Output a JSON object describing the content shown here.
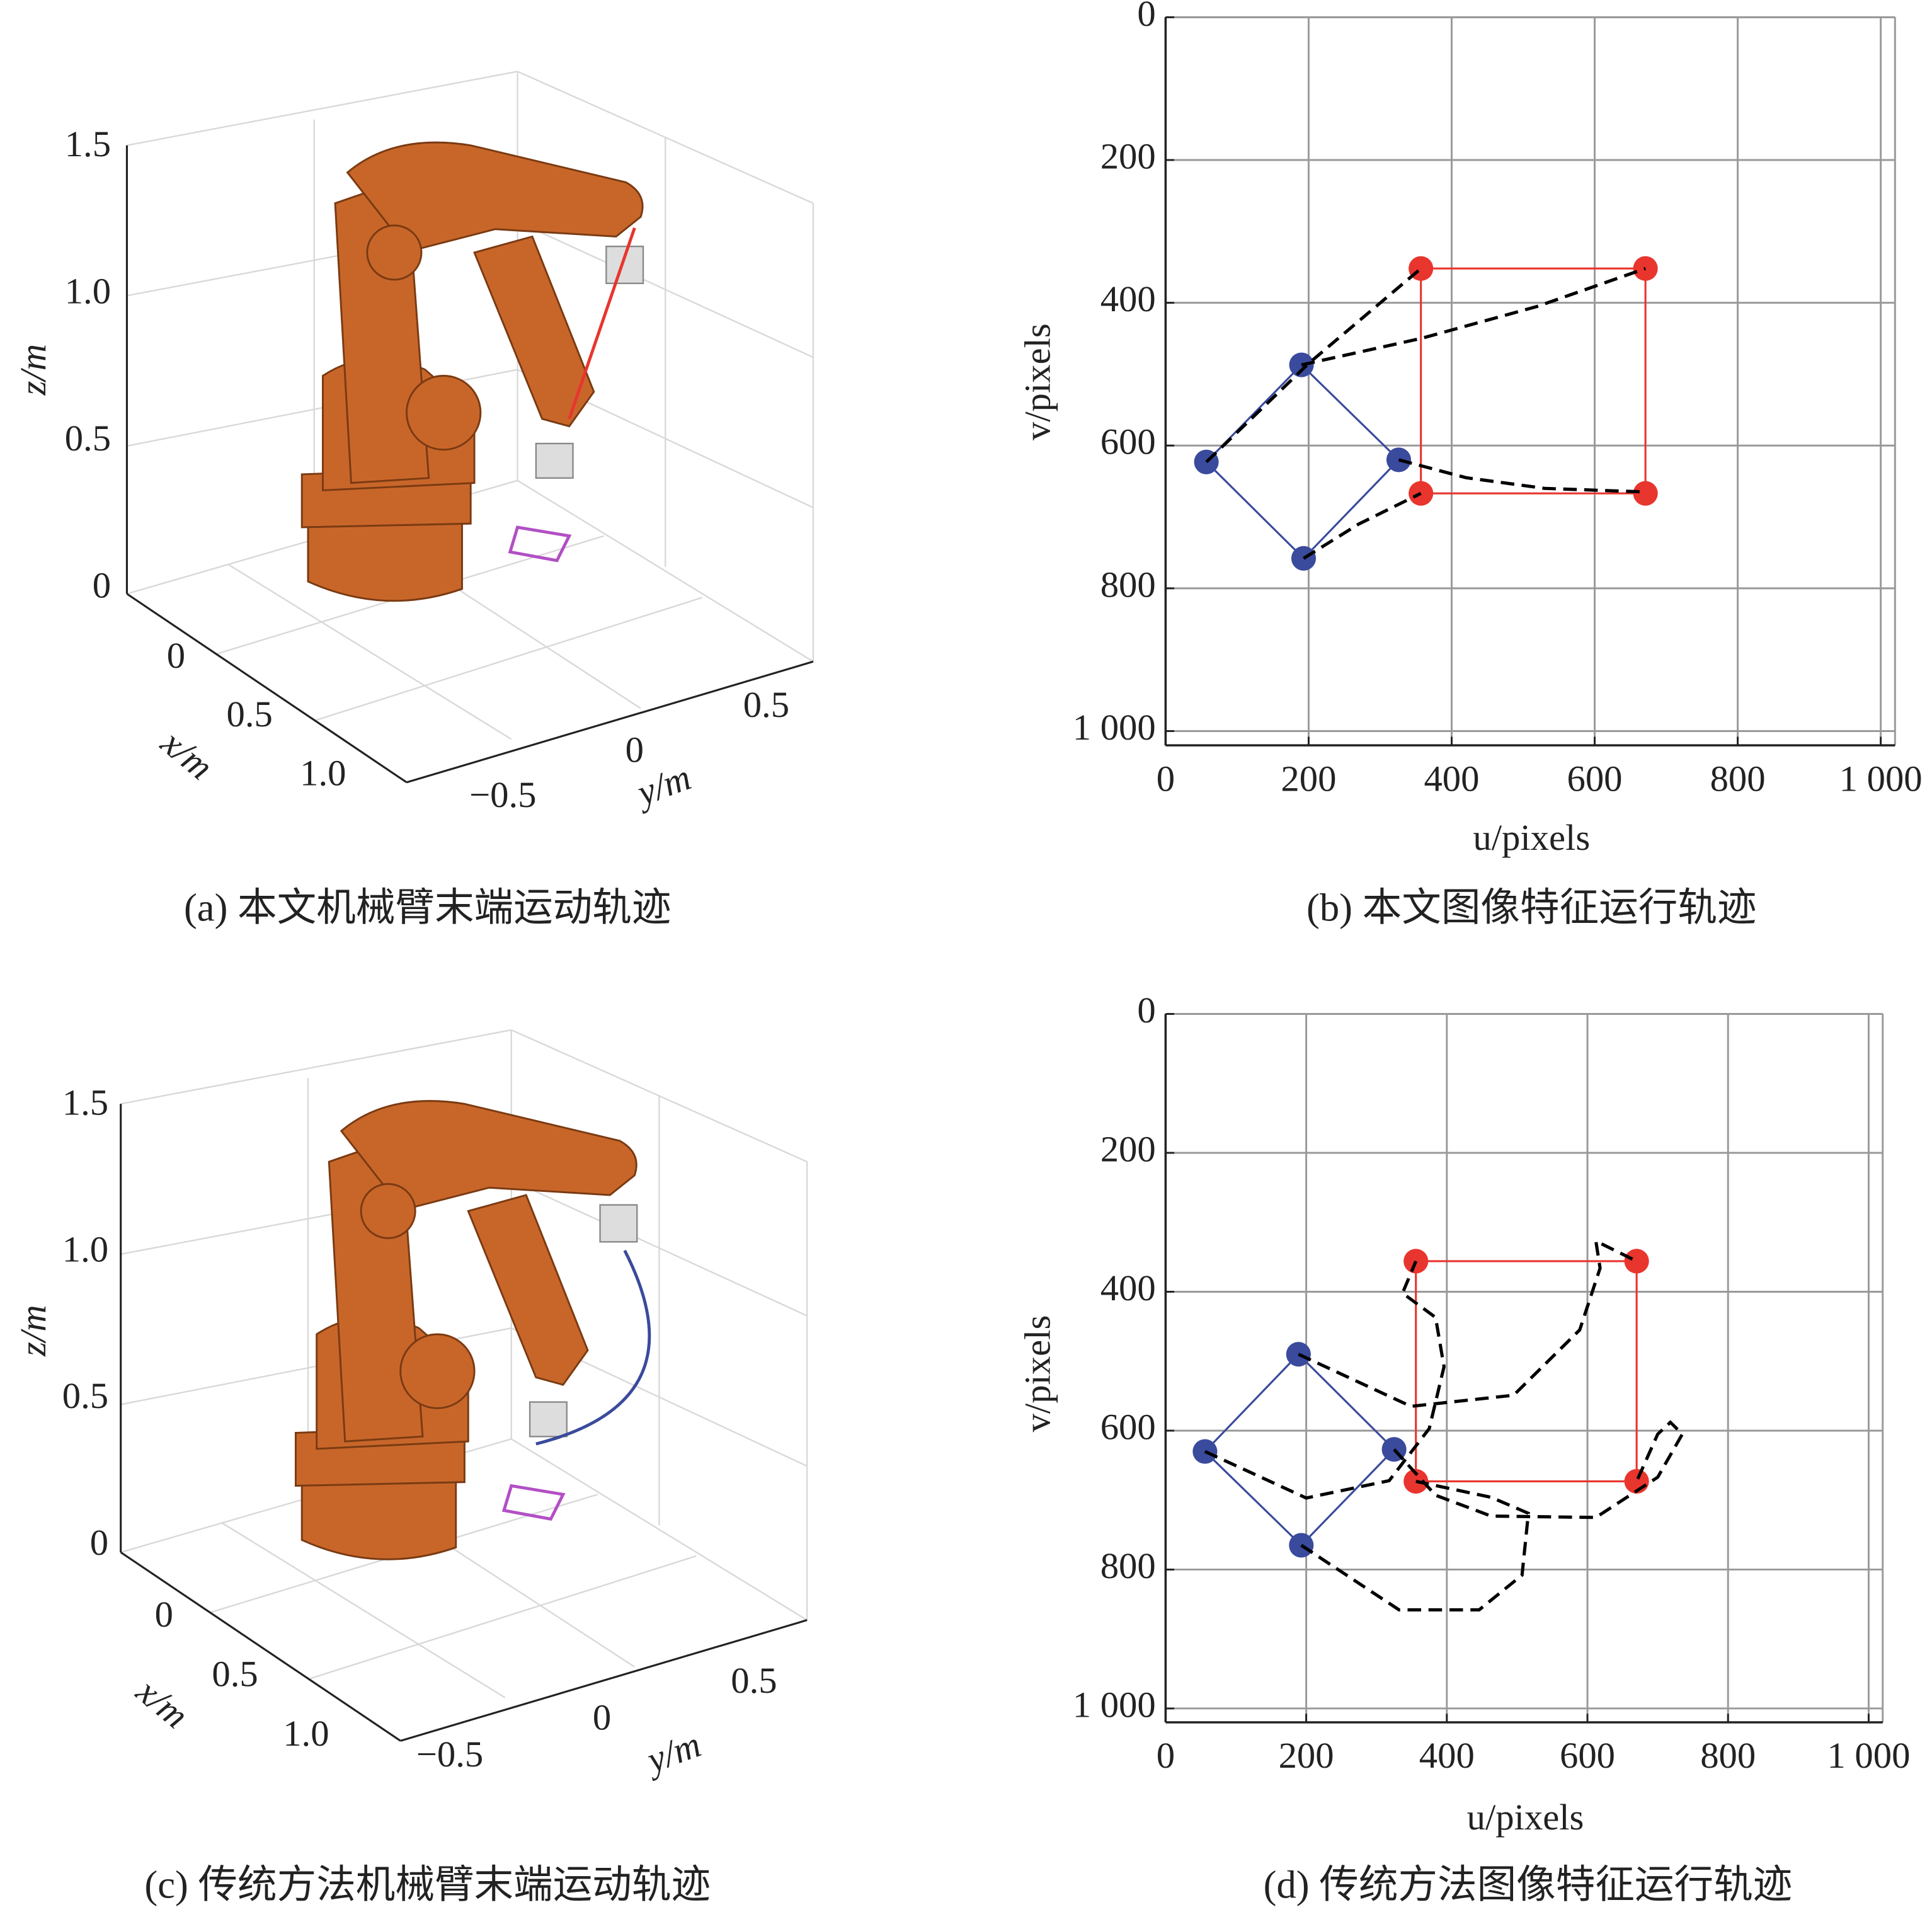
{
  "chart_data": [
    {
      "type": "robot3d",
      "caption": "(a) 本文机械臂末端运动轨迹",
      "zlabel": "z/m",
      "xlabel": "x/m",
      "ylabel": "y/m",
      "zlim": [
        0,
        1.5
      ],
      "zticks": [
        0,
        0.5,
        {
          "value": 1,
          "label": "1.0"
        },
        1.5
      ],
      "xlim": [
        -0.2,
        1.3
      ],
      "xticks": [
        0,
        0.5,
        {
          "value": 1,
          "label": "1.0"
        }
      ],
      "ylim": [
        -0.8,
        0.8
      ],
      "yticks": [
        {
          "value": -0.5,
          "label": "−0.5"
        },
        0,
        0.5
      ]
    },
    {
      "type": "scatter",
      "caption": "(b) 本文图像特征运行轨迹",
      "xlabel": "u/pixels",
      "ylabel": "v/pixels",
      "xlim": [
        0,
        1020
      ],
      "ylim": [
        1020,
        0
      ],
      "grid": true,
      "xticks": [
        0,
        200,
        400,
        600,
        800,
        {
          "value": 1000,
          "label": "1 000"
        }
      ],
      "yticks": [
        0,
        200,
        400,
        600,
        800,
        {
          "value": 1000,
          "label": "1 000"
        }
      ],
      "series": [
        {
          "color": "#3a4a9c",
          "marker": true,
          "closed": true,
          "x": [
            57,
            190,
            326,
            193
          ],
          "y": [
            623,
            487,
            620,
            758
          ]
        },
        {
          "color": "#e8352e",
          "marker": true,
          "closed": true,
          "x": [
            357,
            671,
            671,
            357
          ],
          "y": [
            352,
            352,
            667,
            667
          ]
        },
        {
          "color": "#000000",
          "dashed": true,
          "x": [
            57,
            200,
            357
          ],
          "y": [
            623,
            485,
            352
          ]
        },
        {
          "color": "#000000",
          "dashed": true,
          "x": [
            190,
            357,
            520,
            671
          ],
          "y": [
            487,
            450,
            405,
            352
          ]
        },
        {
          "color": "#000000",
          "dashed": true,
          "x": [
            326,
            420,
            530,
            671
          ],
          "y": [
            620,
            645,
            660,
            665
          ]
        },
        {
          "color": "#000000",
          "dashed": true,
          "x": [
            193,
            270,
            357
          ],
          "y": [
            758,
            710,
            667
          ]
        }
      ]
    },
    {
      "type": "robot3d",
      "caption": "(c) 传统方法机械臂末端运动轨迹",
      "zlabel": "z/m",
      "xlabel": "x/m",
      "ylabel": "y/m",
      "zlim": [
        0,
        1.5
      ],
      "zticks": [
        0,
        0.5,
        {
          "value": 1,
          "label": "1.0"
        },
        1.5
      ],
      "xlim": [
        -0.2,
        1.3
      ],
      "xticks": [
        0,
        0.5,
        {
          "value": 1,
          "label": "1.0"
        }
      ],
      "ylim": [
        -0.8,
        0.8
      ],
      "yticks": [
        {
          "value": -0.5,
          "label": "−0.5"
        },
        0,
        0.5
      ]
    },
    {
      "type": "scatter",
      "caption": "(d) 传统方法图像特征运行轨迹",
      "xlabel": "u/pixels",
      "ylabel": "v/pixels",
      "xlim": [
        0,
        1020
      ],
      "ylim": [
        1020,
        0
      ],
      "grid": true,
      "xticks": [
        0,
        200,
        400,
        600,
        800,
        {
          "value": 1000,
          "label": "1 000"
        }
      ],
      "yticks": [
        0,
        200,
        400,
        600,
        800,
        {
          "value": 1000,
          "label": "1 000"
        }
      ],
      "series": [
        {
          "color": "#3a4a9c",
          "marker": true,
          "closed": true,
          "x": [
            56,
            189,
            325,
            193
          ],
          "y": [
            630,
            490,
            627,
            765
          ]
        },
        {
          "color": "#e8352e",
          "marker": true,
          "closed": true,
          "x": [
            356,
            670,
            670,
            356
          ],
          "y": [
            356,
            356,
            673,
            673
          ]
        },
        {
          "color": "#000000",
          "dashed": true,
          "x": [
            189,
            349,
            495,
            589,
            618,
            612,
            670
          ],
          "y": [
            490,
            565,
            549,
            455,
            366,
            327,
            356
          ]
        },
        {
          "color": "#000000",
          "dashed": true,
          "x": [
            56,
            200,
            318,
            375,
            396,
            384,
            337,
            356
          ],
          "y": [
            630,
            697,
            672,
            597,
            508,
            437,
            402,
            356
          ]
        },
        {
          "color": "#000000",
          "dashed": true,
          "x": [
            193,
            332,
            446,
            507,
            516,
            463,
            356
          ],
          "y": [
            765,
            858,
            858,
            808,
            719,
            696,
            673
          ]
        },
        {
          "color": "#000000",
          "dashed": true,
          "x": [
            325,
            384,
            463,
            612,
            700,
            735,
            718,
            700,
            670
          ],
          "y": [
            627,
            693,
            723,
            725,
            667,
            605,
            588,
            605,
            673
          ]
        }
      ]
    }
  ]
}
